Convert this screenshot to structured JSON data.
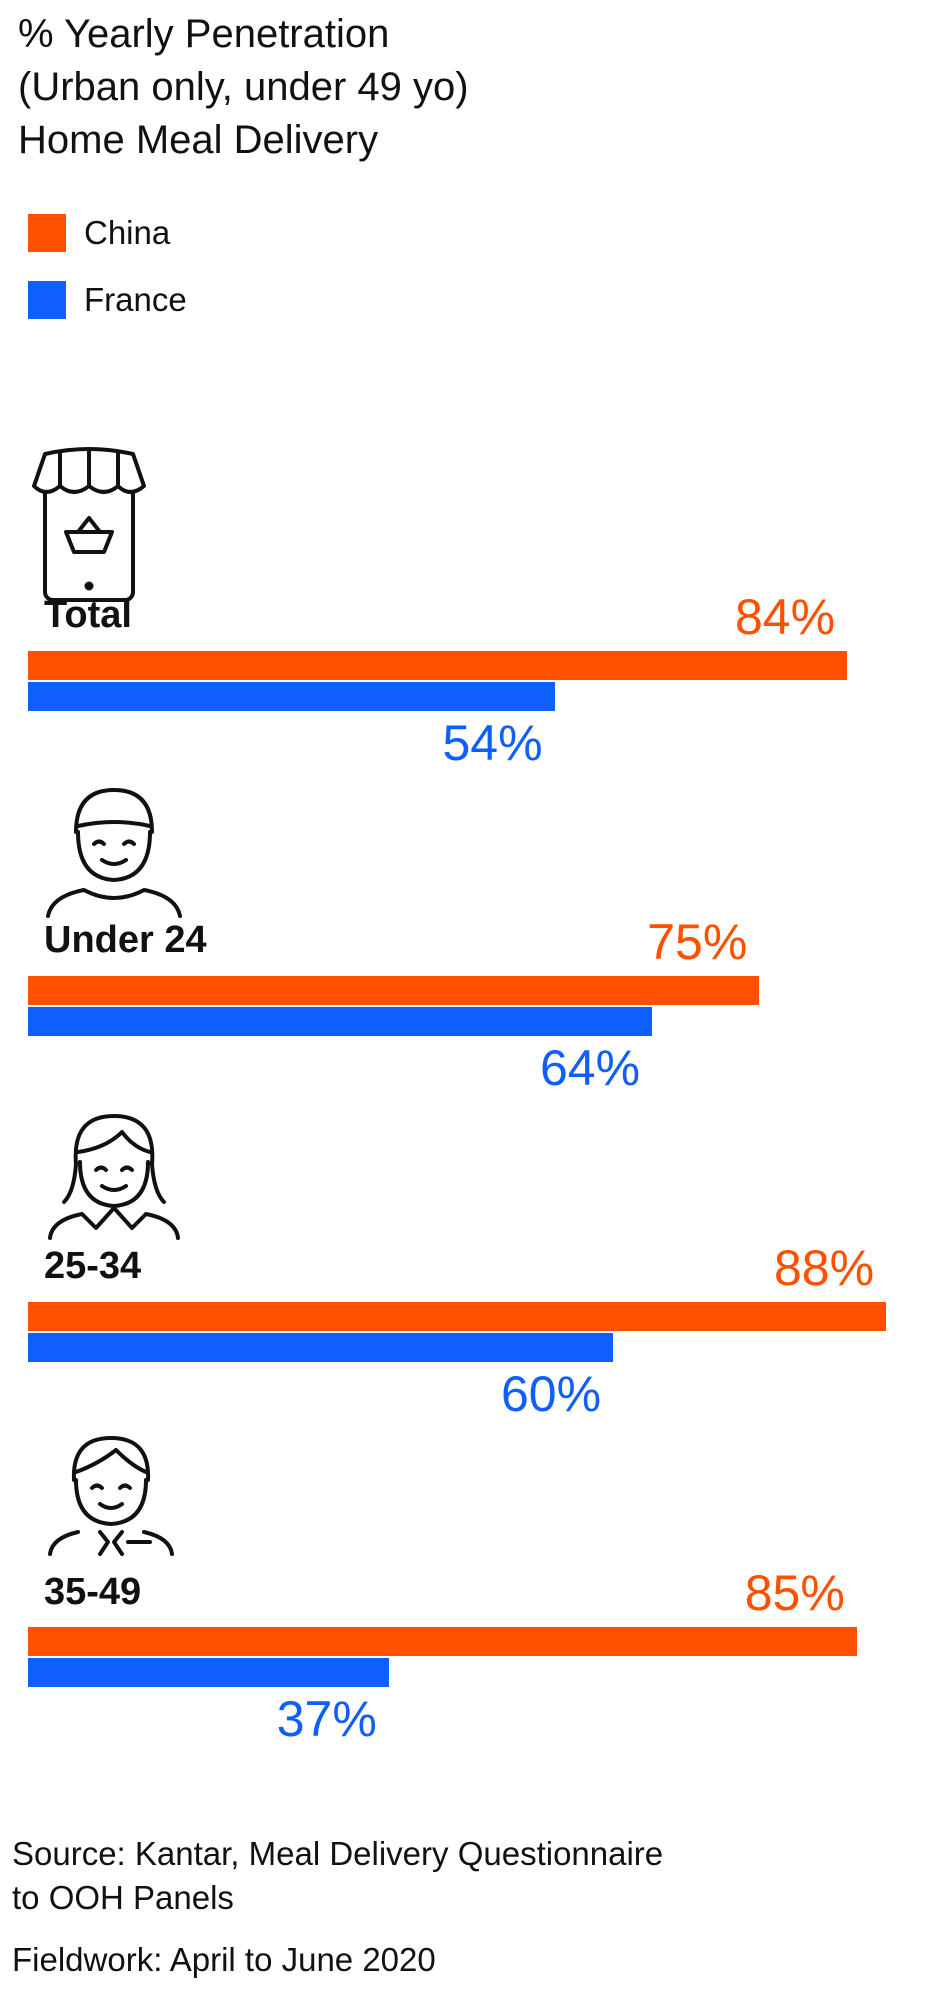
{
  "chart_data": {
    "type": "bar",
    "orientation": "horizontal",
    "title_lines": [
      "% Yearly Penetration",
      "(Urban only, under 49 yo)",
      "Home Meal Delivery"
    ],
    "legend": [
      {
        "name": "China",
        "color": "#ff5000"
      },
      {
        "name": "France",
        "color": "#0f5fff"
      }
    ],
    "categories": [
      "Total",
      "Under 24",
      "25-34",
      "35-49"
    ],
    "icons": [
      "mobile-shop-icon",
      "young-person-icon",
      "woman-icon",
      "man-with-tie-icon"
    ],
    "series": [
      {
        "name": "China",
        "values": [
          84,
          75,
          88,
          85
        ],
        "labels": [
          "84%",
          "75%",
          "88%",
          "85%"
        ]
      },
      {
        "name": "France",
        "values": [
          54,
          64,
          60,
          37
        ],
        "labels": [
          "54%",
          "64%",
          "60%",
          "37%"
        ]
      }
    ],
    "xlim": [
      0,
      88
    ],
    "grid": false,
    "legend_position": "top-left"
  },
  "footer": {
    "source_lines": [
      "Source: Kantar, Meal Delivery Questionnaire",
      "to OOH Panels"
    ],
    "fieldwork": "Fieldwork: April to June 2020"
  }
}
